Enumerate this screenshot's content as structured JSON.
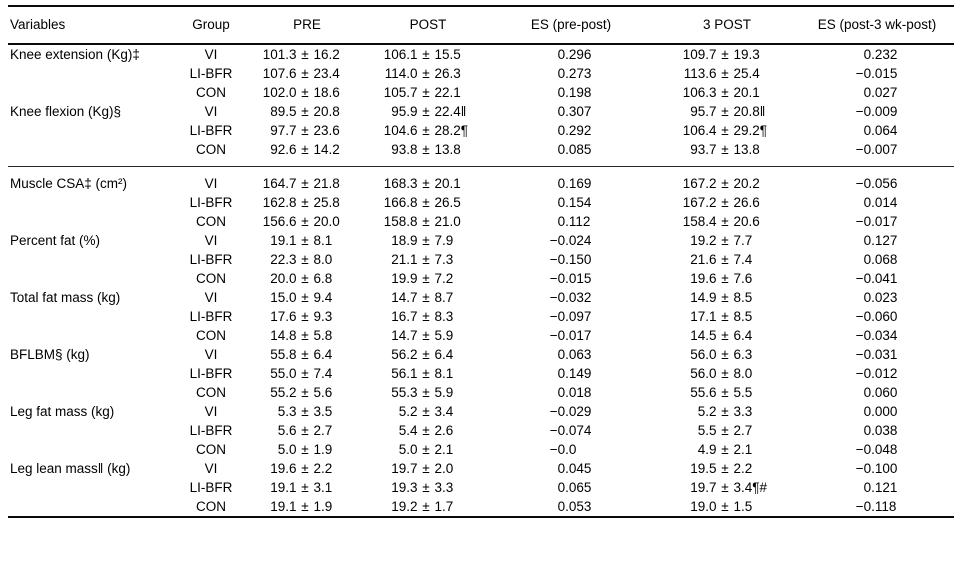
{
  "table": {
    "headers": [
      "Variables",
      "Group",
      "PRE",
      "POST",
      "ES (pre-post)",
      "3 POST",
      "ES (post-3 wk-post)"
    ],
    "sections": [
      {
        "rows": [
          {
            "variable": "Knee extension (Kg)‡",
            "group": "VI",
            "pre": "101.3 ± 16.2",
            "post": "106.1 ± 15.5",
            "es_pre_post": "0.296",
            "post3": "109.7 ± 19.3",
            "es_post_3wk": "0.232"
          },
          {
            "variable": "",
            "group": "LI-BFR",
            "pre": "107.6 ± 23.4",
            "post": "114.0 ± 26.3",
            "es_pre_post": "0.273",
            "post3": "113.6 ± 25.4",
            "es_post_3wk": "−0.015"
          },
          {
            "variable": "",
            "group": "CON",
            "pre": "102.0 ± 18.6",
            "post": "105.7 ± 22.1",
            "es_pre_post": "0.198",
            "post3": "106.3 ± 20.1",
            "es_post_3wk": "0.027"
          },
          {
            "variable": "Knee flexion (Kg)§",
            "group": "VI",
            "pre": "89.5 ± 20.8",
            "post": "95.9 ± 22.4‖",
            "es_pre_post": "0.307",
            "post3": "95.7 ± 20.8‖",
            "es_post_3wk": "−0.009"
          },
          {
            "variable": "",
            "group": "LI-BFR",
            "pre": "97.7 ± 23.6",
            "post": "104.6 ± 28.2¶",
            "es_pre_post": "0.292",
            "post3": "106.4 ± 29.2¶",
            "es_post_3wk": "0.064"
          },
          {
            "variable": "",
            "group": "CON",
            "pre": "92.6 ± 14.2",
            "post": "93.8 ± 13.8",
            "es_pre_post": "0.085",
            "post3": "93.7 ± 13.8",
            "es_post_3wk": "−0.007"
          }
        ]
      },
      {
        "rows": [
          {
            "variable": "Muscle CSA‡ (cm²)",
            "group": "VI",
            "pre": "164.7 ± 21.8",
            "post": "168.3 ± 20.1",
            "es_pre_post": "0.169",
            "post3": "167.2 ± 20.2",
            "es_post_3wk": "−0.056"
          },
          {
            "variable": "",
            "group": "LI-BFR",
            "pre": "162.8 ± 25.8",
            "post": "166.8 ± 26.5",
            "es_pre_post": "0.154",
            "post3": "167.2 ± 26.6",
            "es_post_3wk": "0.014"
          },
          {
            "variable": "",
            "group": "CON",
            "pre": "156.6 ± 20.0",
            "post": "158.8 ± 21.0",
            "es_pre_post": "0.112",
            "post3": "158.4 ± 20.6",
            "es_post_3wk": "−0.017"
          },
          {
            "variable": "Percent fat (%)",
            "group": "VI",
            "pre": "19.1 ± 8.1",
            "post": "18.9 ± 7.9",
            "es_pre_post": "−0.024",
            "post3": "19.2 ± 7.7",
            "es_post_3wk": "0.127"
          },
          {
            "variable": "",
            "group": "LI-BFR",
            "pre": "22.3 ± 8.0",
            "post": "21.1 ± 7.3",
            "es_pre_post": "−0.150",
            "post3": "21.6 ± 7.4",
            "es_post_3wk": "0.068"
          },
          {
            "variable": "",
            "group": "CON",
            "pre": "20.0 ± 6.8",
            "post": "19.9 ± 7.2",
            "es_pre_post": "−0.015",
            "post3": "19.6 ± 7.6",
            "es_post_3wk": "−0.041"
          },
          {
            "variable": "Total fat mass (kg)",
            "group": "VI",
            "pre": "15.0 ± 9.4",
            "post": "14.7 ± 8.7",
            "es_pre_post": "−0.032",
            "post3": "14.9 ± 8.5",
            "es_post_3wk": "0.023"
          },
          {
            "variable": "",
            "group": "LI-BFR",
            "pre": "17.6 ± 9.3",
            "post": "16.7 ± 8.3",
            "es_pre_post": "−0.097",
            "post3": "17.1 ± 8.5",
            "es_post_3wk": "−0.060"
          },
          {
            "variable": "",
            "group": "CON",
            "pre": "14.8 ± 5.8",
            "post": "14.7 ± 5.9",
            "es_pre_post": "−0.017",
            "post3": "14.5 ± 6.4",
            "es_post_3wk": "−0.034"
          },
          {
            "variable": "BFLBM§ (kg)",
            "group": "VI",
            "pre": "55.8 ± 6.4",
            "post": "56.2 ± 6.4",
            "es_pre_post": "0.063",
            "post3": "56.0 ± 6.3",
            "es_post_3wk": "−0.031"
          },
          {
            "variable": "",
            "group": "LI-BFR",
            "pre": "55.0 ± 7.4",
            "post": "56.1 ± 8.1",
            "es_pre_post": "0.149",
            "post3": "56.0 ± 8.0",
            "es_post_3wk": "−0.012"
          },
          {
            "variable": "",
            "group": "CON",
            "pre": "55.2 ± 5.6",
            "post": "55.3 ± 5.9",
            "es_pre_post": "0.018",
            "post3": "55.6 ± 5.5",
            "es_post_3wk": "0.060"
          },
          {
            "variable": "Leg fat mass (kg)",
            "group": "VI",
            "pre": "5.3 ± 3.5",
            "post": "5.2 ± 3.4",
            "es_pre_post": "−0.029",
            "post3": "5.2 ± 3.3",
            "es_post_3wk": "0.000"
          },
          {
            "variable": "",
            "group": "LI-BFR",
            "pre": "5.6 ± 2.7",
            "post": "5.4 ± 2.6",
            "es_pre_post": "−0.074",
            "post3": "5.5 ± 2.7",
            "es_post_3wk": "0.038"
          },
          {
            "variable": "",
            "group": "CON",
            "pre": "5.0 ± 1.9",
            "post": "5.0 ± 2.1",
            "es_pre_post": "−0.0",
            "post3": "4.9 ± 2.1",
            "es_post_3wk": "−0.048"
          },
          {
            "variable": "Leg lean mass‖ (kg)",
            "group": "VI",
            "pre": "19.6 ± 2.2",
            "post": "19.7 ± 2.0",
            "es_pre_post": "0.045",
            "post3": "19.5 ± 2.2",
            "es_post_3wk": "−0.100"
          },
          {
            "variable": "",
            "group": "LI-BFR",
            "pre": "19.1 ± 3.1",
            "post": "19.3 ± 3.3",
            "es_pre_post": "0.065",
            "post3": "19.7 ± 3.4¶#",
            "es_post_3wk": "0.121"
          },
          {
            "variable": "",
            "group": "CON",
            "pre": "19.1 ± 1.9",
            "post": "19.2 ± 1.7",
            "es_pre_post": "0.053",
            "post3": "19.0 ± 1.5",
            "es_post_3wk": "−0.118"
          }
        ]
      }
    ]
  }
}
